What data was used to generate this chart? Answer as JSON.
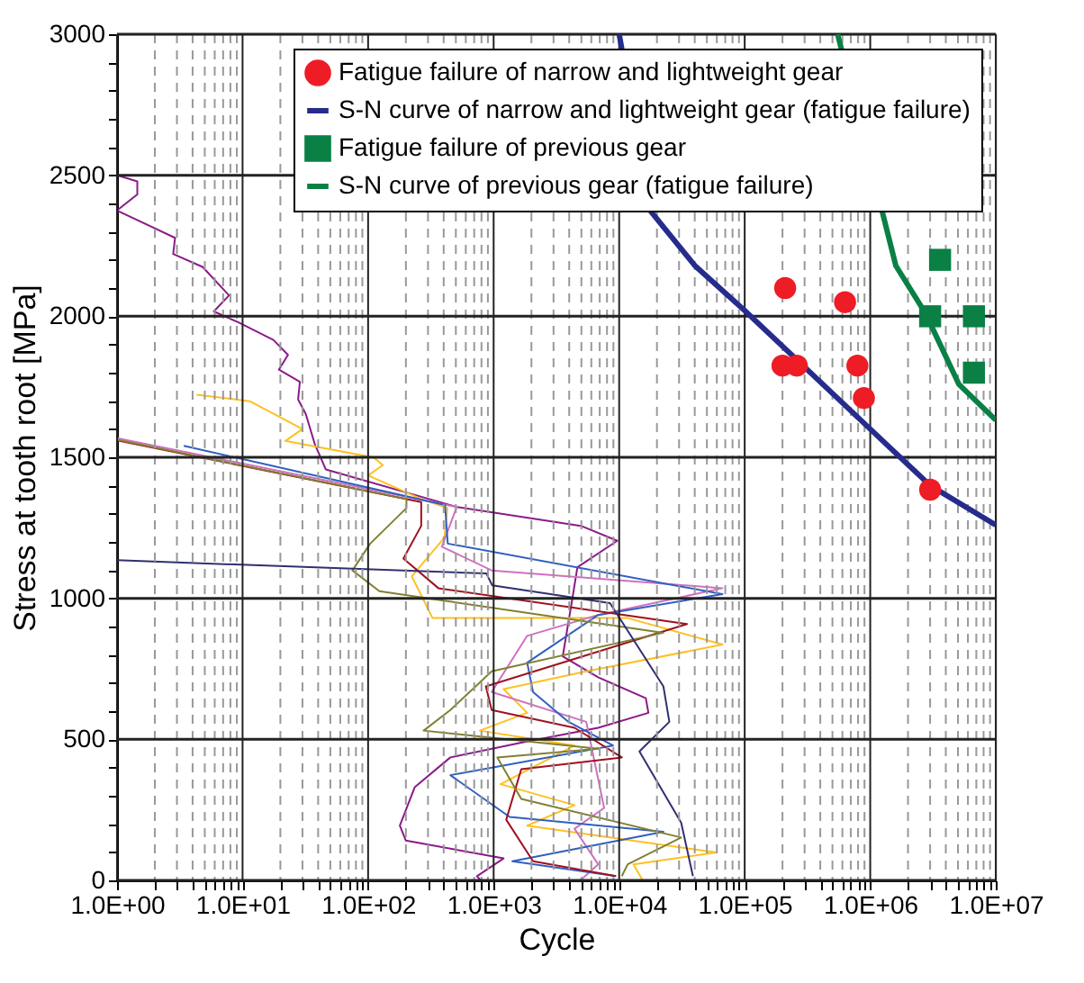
{
  "chart_data": {
    "type": "line",
    "xlabel": "Cycle",
    "ylabel": "Stress at tooth root  [MPa]",
    "log": "x",
    "grid": true,
    "legend": "top right",
    "xlim": [
      1,
      10000000
    ],
    "ylim": [
      0,
      3000
    ],
    "xticks": [
      {
        "value": 1,
        "label": "1.0E+00"
      },
      {
        "value": 2,
        "label": null
      },
      {
        "value": 3,
        "label": null
      },
      {
        "value": 4,
        "label": null
      },
      {
        "value": 5,
        "label": null
      },
      {
        "value": 6,
        "label": null
      },
      {
        "value": 7,
        "label": null
      },
      {
        "value": 8,
        "label": null
      },
      {
        "value": 9,
        "label": null
      },
      {
        "value": 10,
        "label": "1.0E+01"
      },
      {
        "value": 20,
        "label": null
      },
      {
        "value": 30,
        "label": null
      },
      {
        "value": 40,
        "label": null
      },
      {
        "value": 50,
        "label": null
      },
      {
        "value": 60,
        "label": null
      },
      {
        "value": 70,
        "label": null
      },
      {
        "value": 80,
        "label": null
      },
      {
        "value": 90,
        "label": null
      },
      {
        "value": 100,
        "label": "1.0E+02"
      },
      {
        "value": 200,
        "label": null
      },
      {
        "value": 300,
        "label": null
      },
      {
        "value": 400,
        "label": null
      },
      {
        "value": 500,
        "label": null
      },
      {
        "value": 600,
        "label": null
      },
      {
        "value": 700,
        "label": null
      },
      {
        "value": 800,
        "label": null
      },
      {
        "value": 900,
        "label": null
      },
      {
        "value": 1000,
        "label": "1.0E+03"
      },
      {
        "value": 2000,
        "label": null
      },
      {
        "value": 3000,
        "label": null
      },
      {
        "value": 4000,
        "label": null
      },
      {
        "value": 5000,
        "label": null
      },
      {
        "value": 6000,
        "label": null
      },
      {
        "value": 7000,
        "label": null
      },
      {
        "value": 8000,
        "label": null
      },
      {
        "value": 9000,
        "label": null
      },
      {
        "value": 10000,
        "label": "1.0E+04"
      },
      {
        "value": 20000,
        "label": null
      },
      {
        "value": 30000,
        "label": null
      },
      {
        "value": 40000,
        "label": null
      },
      {
        "value": 50000,
        "label": null
      },
      {
        "value": 60000,
        "label": null
      },
      {
        "value": 70000,
        "label": null
      },
      {
        "value": 80000,
        "label": null
      },
      {
        "value": 90000,
        "label": null
      },
      {
        "value": 100000,
        "label": "1.0E+05"
      },
      {
        "value": 200000,
        "label": null
      },
      {
        "value": 300000,
        "label": null
      },
      {
        "value": 400000,
        "label": null
      },
      {
        "value": 500000,
        "label": null
      },
      {
        "value": 600000,
        "label": null
      },
      {
        "value": 700000,
        "label": null
      },
      {
        "value": 800000,
        "label": null
      },
      {
        "value": 900000,
        "label": null
      },
      {
        "value": 1000000,
        "label": "1.0E+06"
      },
      {
        "value": 2000000,
        "label": null
      },
      {
        "value": 3000000,
        "label": null
      },
      {
        "value": 4000000,
        "label": null
      },
      {
        "value": 5000000,
        "label": null
      },
      {
        "value": 6000000,
        "label": null
      },
      {
        "value": 7000000,
        "label": null
      },
      {
        "value": 8000000,
        "label": null
      },
      {
        "value": 9000000,
        "label": null
      },
      {
        "value": 10000000,
        "label": "1.0E+07"
      }
    ],
    "yticks": [
      0,
      {
        "value": 100,
        "label": null
      },
      {
        "value": 200,
        "label": null
      },
      {
        "value": 300,
        "label": null
      },
      {
        "value": 400,
        "label": null
      },
      500,
      {
        "value": 600,
        "label": null
      },
      {
        "value": 700,
        "label": null
      },
      {
        "value": 800,
        "label": null
      },
      {
        "value": 900,
        "label": null
      },
      1000,
      {
        "value": 1100,
        "label": null
      },
      {
        "value": 1200,
        "label": null
      },
      {
        "value": 1300,
        "label": null
      },
      {
        "value": 1400,
        "label": null
      },
      1500,
      {
        "value": 1600,
        "label": null
      },
      {
        "value": 1700,
        "label": null
      },
      {
        "value": 1800,
        "label": null
      },
      {
        "value": 1900,
        "label": null
      },
      2000,
      {
        "value": 2100,
        "label": null
      },
      {
        "value": 2200,
        "label": null
      },
      {
        "value": 2300,
        "label": null
      },
      {
        "value": 2400,
        "label": null
      },
      2500,
      {
        "value": 2600,
        "label": null
      },
      {
        "value": 2700,
        "label": null
      },
      {
        "value": 2800,
        "label": null
      },
      {
        "value": 2900,
        "label": null
      },
      3000
    ],
    "series": [
      {
        "type": "line",
        "color": "#8b1a89",
        "x": [
          1,
          1.45,
          1.45,
          1,
          2.9,
          2.8,
          4.8,
          7.8,
          5.9,
          9.2,
          17.6,
          23,
          19.5,
          28.6,
          27.7,
          31.9,
          37.6,
          46,
          508,
          4960,
          9660,
          4650,
          4180,
          3550,
          6800,
          16300,
          17100,
          6800,
          1660,
          452,
          235,
          179,
          200,
          1200,
          736,
          790
        ],
        "values": [
          2500,
          2478,
          2432,
          2375,
          2278,
          2221,
          2175,
          2074,
          2017,
          1979,
          1916,
          1863,
          1811,
          1768,
          1705,
          1653,
          1547,
          1457,
          1324,
          1257,
          1204,
          1110,
          983,
          794,
          720,
          646,
          594,
          541,
          488,
          436,
          330,
          194,
          141,
          78,
          15,
          0
        ]
      },
      {
        "type": "line",
        "color": "#ffc020",
        "x": [
          4.3,
          11.4,
          30,
          21.9,
          111,
          131,
          100,
          265,
          428,
          405,
          223,
          326,
          11700,
          66500,
          5470,
          1200,
          1850,
          776,
          4410,
          1135,
          4410,
          1850,
          59700,
          13000,
          15400
        ],
        "values": [
          1722,
          1699,
          1600,
          1558,
          1499,
          1472,
          1436,
          1352,
          1320,
          1215,
          1078,
          930,
          930,
          836,
          741,
          678,
          594,
          531,
          478,
          341,
          267,
          194,
          99,
          57,
          0
        ]
      },
      {
        "type": "line",
        "color": "#d070c0",
        "x": [
          1,
          508,
          387,
          965,
          66500,
          6800,
          1850,
          965,
          5470,
          7590,
          4410,
          6800,
          4900
        ],
        "values": [
          1568,
          1324,
          1183,
          1099,
          1036,
          941,
          867,
          668,
          562,
          257,
          183,
          57,
          0
        ]
      },
      {
        "type": "line",
        "color": "#3060c0",
        "x": [
          3.4,
          410,
          431,
          66500,
          6800,
          1850,
          2060,
          3950,
          8930,
          452,
          1340,
          22500,
          1410,
          9440
        ],
        "values": [
          1541,
          1331,
          1194,
          1015,
          941,
          772,
          668,
          562,
          478,
          373,
          225,
          172,
          68,
          15
        ]
      },
      {
        "type": "line",
        "color": "#a01020",
        "x": [
          1,
          265,
          265,
          191,
          363,
          34700,
          867,
          965,
          4410,
          10500,
          1660,
          1260,
          2060,
          9440
        ],
        "values": [
          1560,
          1341,
          1257,
          1141,
          1036,
          909,
          688,
          604,
          541,
          436,
          394,
          215,
          68,
          15
        ]
      },
      {
        "type": "line",
        "color": "#808030",
        "x": [
          1,
          202,
          202,
          104,
          75,
          123,
          22500,
          965,
          452,
          277,
          6800,
          1070,
          1660,
          31200,
          11700,
          10500
        ],
        "values": [
          1562,
          1352,
          1320,
          1194,
          1099,
          1025,
          878,
          741,
          604,
          531,
          467,
          436,
          289,
          152,
          57,
          15
        ]
      },
      {
        "type": "line",
        "color": "#303070",
        "x": [
          1,
          875,
          975,
          8450,
          22500,
          25100,
          14500,
          31200,
          38700
        ],
        "values": [
          1135,
          1088,
          1046,
          983,
          688,
          562,
          457,
          204,
          15
        ]
      },
      {
        "type": "scatter",
        "name": "Fatigue failure of narrow and lightweight gear",
        "color": "#ee1c25",
        "marker": "circle",
        "x": [
          210000,
          630000,
          200000,
          260000,
          790000,
          890000,
          3000000
        ],
        "values": [
          2100,
          2050,
          1825,
          1825,
          1825,
          1710,
          1385
        ]
      },
      {
        "name": "S-N curve of narrow and lightweight gear (fatigue failure)",
        "color": "#262c8c",
        "x": [
          10000,
          18000,
          40000,
          100000,
          1000000,
          3000000,
          10000000
        ],
        "values": [
          3000,
          2370,
          2180,
          2020,
          1600,
          1400,
          1260
        ]
      },
      {
        "type": "scatter",
        "name": "Fatigue failure of previous gear",
        "color": "#0a8045",
        "marker": "square",
        "x": [
          3600000,
          3000000,
          6700000,
          6700000
        ],
        "values": [
          2200,
          2000,
          2000,
          1800
        ]
      },
      {
        "name": "S-N curve of previous gear (fatigue failure)",
        "color": "#0a8045",
        "x": [
          550000,
          1600000,
          2750000,
          5100000,
          10000000
        ],
        "values": [
          3000,
          2179,
          2011,
          1758,
          1632
        ]
      }
    ]
  }
}
